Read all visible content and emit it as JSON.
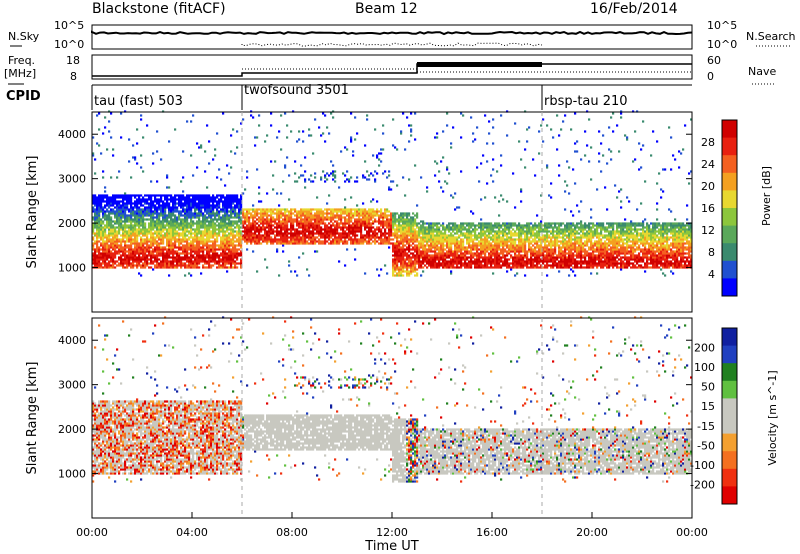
{
  "header": {
    "station": "Blackstone (fitACF)",
    "beam": "Beam 12",
    "date": "16/Feb/2014"
  },
  "sky_panel": {
    "left_label": "N.Sky",
    "right_label": "N.Search",
    "left_ticks": [
      "10^5",
      "10^0"
    ],
    "right_ticks": [
      "10^5",
      "10^0"
    ]
  },
  "freq_panel": {
    "left_label_1": "Freq.",
    "left_label_2": "[MHz]",
    "right_label": "Nave",
    "left_ticks": [
      "18",
      "8"
    ],
    "right_ticks": [
      "60",
      "0"
    ]
  },
  "cpid_panel": {
    "label": "CPID",
    "modes": [
      {
        "name": "tau (fast) 503",
        "start_hour": 0
      },
      {
        "name": "twofsound 3501",
        "start_hour": 6
      },
      {
        "name": "rbsp-tau 210",
        "start_hour": 18
      }
    ]
  },
  "chart_data": [
    {
      "type": "heatmap",
      "panel": "power",
      "ylabel": "Slant Range [km]",
      "ylim": [
        0,
        4500
      ],
      "yticks": [
        "4000",
        "3000",
        "2000",
        "1000"
      ],
      "ytick_values": [
        4000,
        3000,
        2000,
        1000
      ],
      "xlim": [
        0,
        24
      ],
      "colorbar": {
        "label": "Power [dB]",
        "ticks": [
          "28",
          "24",
          "20",
          "16",
          "12",
          "8",
          "4"
        ],
        "colors": [
          "#0000ff",
          "#2050d0",
          "#3a8a6e",
          "#5aa85a",
          "#8cc63c",
          "#e8d830",
          "#f4a020",
          "#f46020",
          "#e82010",
          "#d00000"
        ]
      },
      "bands": [
        {
          "x_start": 0,
          "x_end": 6,
          "y_low": 950,
          "y_high": 2600,
          "core": 1200
        },
        {
          "x_start": 6,
          "x_end": 12,
          "y_low": 1500,
          "y_high": 2300,
          "core": 1800
        },
        {
          "x_start": 12,
          "x_end": 13,
          "y_low": 800,
          "y_high": 2200,
          "core": 1300
        },
        {
          "x_start": 13,
          "x_end": 18,
          "y_low": 950,
          "y_high": 2000,
          "core": 1100
        },
        {
          "x_start": 18,
          "x_end": 24,
          "y_low": 950,
          "y_high": 2000,
          "core": 1100
        }
      ]
    },
    {
      "type": "heatmap",
      "panel": "velocity",
      "ylabel": "Slant Range [km]",
      "ylim": [
        0,
        4500
      ],
      "yticks": [
        "4000",
        "3000",
        "2000",
        "1000"
      ],
      "ytick_values": [
        4000,
        3000,
        2000,
        1000
      ],
      "xlim": [
        0,
        24
      ],
      "xlabel": "Time UT",
      "xticks": [
        "00:00",
        "04:00",
        "08:00",
        "12:00",
        "16:00",
        "20:00",
        "00:00"
      ],
      "xtick_values": [
        0,
        4,
        8,
        12,
        16,
        20,
        24
      ],
      "colorbar": {
        "label": "Velocity [m s^-1]",
        "ticks": [
          "200",
          "100",
          "50",
          "15",
          "-15",
          "-50",
          "-100",
          "-200"
        ],
        "colors": [
          "#e00000",
          "#f03010",
          "#f47020",
          "#f4a030",
          "#c8c8c0",
          "#c8c8c0",
          "#60c040",
          "#208020",
          "#2040c0",
          "#1020a0"
        ]
      }
    }
  ]
}
